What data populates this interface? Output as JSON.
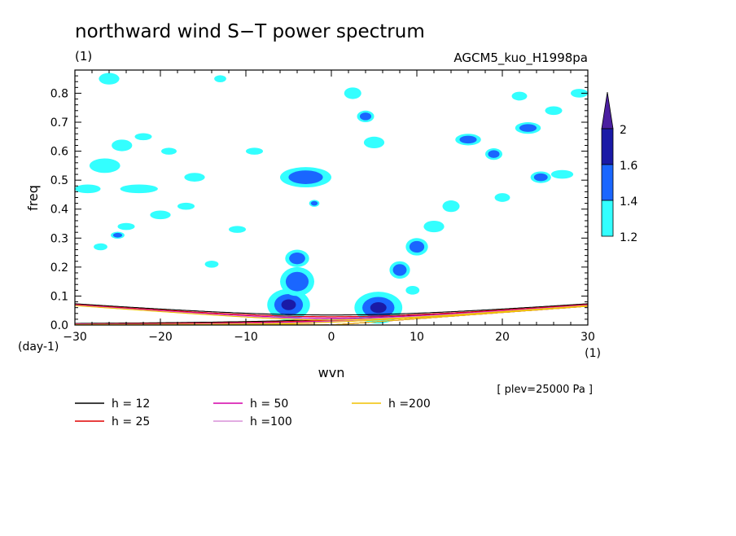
{
  "chart_data": {
    "type": "heatmap",
    "title": "northward wind S−T power spectrum",
    "unit_label": "(1)",
    "run_label": "AGCM5_kuo_H1998pa",
    "xlabel": "wvn",
    "ylabel": "freq",
    "x_unit": "(1)",
    "y_unit": "(day-1)",
    "level_label": "[ plev=25000 Pa ]",
    "xlim": [
      -30,
      30
    ],
    "ylim": [
      0,
      0.88
    ],
    "xticks": [
      -30,
      -20,
      -10,
      0,
      10,
      20,
      30
    ],
    "yticks": [
      0.0,
      0.1,
      0.2,
      0.3,
      0.4,
      0.5,
      0.6,
      0.7,
      0.8
    ],
    "ytick_labels": [
      "0.0",
      "0.1",
      "0.2",
      "0.3",
      "0.4",
      "0.5",
      "0.6",
      "0.7",
      "0.8"
    ],
    "colorbar": {
      "levels": [
        "1.2",
        "1.4",
        "1.6",
        "2"
      ],
      "colors": [
        "#33ffff",
        "#1a66ff",
        "#1a1aa6",
        "#4b1fa0"
      ]
    },
    "dispersion_curves": [
      {
        "label": "h = 12",
        "h": 12,
        "color": "#000000"
      },
      {
        "label": "h = 25",
        "h": 25,
        "color": "#e00000"
      },
      {
        "label": "h = 50",
        "h": 50,
        "color": "#d400a8"
      },
      {
        "label": "h =100",
        "h": 100,
        "color": "#d890d8"
      },
      {
        "label": "h =200",
        "h": 200,
        "color": "#f0c000"
      }
    ],
    "contour_blobs": [
      {
        "x": -5,
        "y": 0.07,
        "rx": 2.5,
        "ry": 0.055,
        "level": 3
      },
      {
        "x": -4,
        "y": 0.15,
        "rx": 2.0,
        "ry": 0.05,
        "level": 2
      },
      {
        "x": -4,
        "y": 0.23,
        "rx": 1.4,
        "ry": 0.03,
        "level": 2
      },
      {
        "x": 5.5,
        "y": 0.06,
        "rx": 2.8,
        "ry": 0.055,
        "level": 3
      },
      {
        "x": 8,
        "y": 0.19,
        "rx": 1.2,
        "ry": 0.03,
        "level": 2
      },
      {
        "x": 10,
        "y": 0.27,
        "rx": 1.3,
        "ry": 0.03,
        "level": 2
      },
      {
        "x": -3,
        "y": 0.51,
        "rx": 3.0,
        "ry": 0.035,
        "level": 2
      },
      {
        "x": 4,
        "y": 0.72,
        "rx": 1.0,
        "ry": 0.02,
        "level": 2
      },
      {
        "x": 23,
        "y": 0.68,
        "rx": 1.5,
        "ry": 0.02,
        "level": 2
      },
      {
        "x": 24.5,
        "y": 0.51,
        "rx": 1.2,
        "ry": 0.02,
        "level": 2
      },
      {
        "x": 16,
        "y": 0.64,
        "rx": 1.5,
        "ry": 0.02,
        "level": 2
      },
      {
        "x": 19,
        "y": 0.59,
        "rx": 1.0,
        "ry": 0.02,
        "level": 2
      },
      {
        "x": 2.5,
        "y": 0.8,
        "rx": 1.0,
        "ry": 0.02,
        "level": 1
      },
      {
        "x": -22.5,
        "y": 0.47,
        "rx": 2.2,
        "ry": 0.015,
        "level": 1
      },
      {
        "x": -26.5,
        "y": 0.55,
        "rx": 1.8,
        "ry": 0.025,
        "level": 1
      },
      {
        "x": -24.5,
        "y": 0.62,
        "rx": 1.2,
        "ry": 0.02,
        "level": 1
      },
      {
        "x": -28.5,
        "y": 0.47,
        "rx": 1.5,
        "ry": 0.015,
        "level": 1
      },
      {
        "x": -26,
        "y": 0.85,
        "rx": 1.2,
        "ry": 0.02,
        "level": 1
      },
      {
        "x": -20,
        "y": 0.38,
        "rx": 1.2,
        "ry": 0.015,
        "level": 1
      },
      {
        "x": -24,
        "y": 0.34,
        "rx": 1.0,
        "ry": 0.012,
        "level": 1
      },
      {
        "x": -16,
        "y": 0.51,
        "rx": 1.2,
        "ry": 0.015,
        "level": 1
      },
      {
        "x": -17,
        "y": 0.41,
        "rx": 1.0,
        "ry": 0.012,
        "level": 1
      },
      {
        "x": -11,
        "y": 0.33,
        "rx": 1.0,
        "ry": 0.012,
        "level": 1
      },
      {
        "x": -14,
        "y": 0.21,
        "rx": 0.8,
        "ry": 0.012,
        "level": 1
      },
      {
        "x": -19,
        "y": 0.6,
        "rx": 0.9,
        "ry": 0.012,
        "level": 1
      },
      {
        "x": -9,
        "y": 0.6,
        "rx": 1.0,
        "ry": 0.012,
        "level": 1
      },
      {
        "x": -25,
        "y": 0.31,
        "rx": 0.8,
        "ry": 0.012,
        "level": 2
      },
      {
        "x": -2,
        "y": 0.42,
        "rx": 0.6,
        "ry": 0.012,
        "level": 2
      },
      {
        "x": 5,
        "y": 0.63,
        "rx": 1.2,
        "ry": 0.02,
        "level": 1
      },
      {
        "x": 12,
        "y": 0.34,
        "rx": 1.2,
        "ry": 0.02,
        "level": 1
      },
      {
        "x": 14,
        "y": 0.41,
        "rx": 1.0,
        "ry": 0.02,
        "level": 1
      },
      {
        "x": 20,
        "y": 0.44,
        "rx": 0.9,
        "ry": 0.015,
        "level": 1
      },
      {
        "x": 27,
        "y": 0.52,
        "rx": 1.3,
        "ry": 0.015,
        "level": 1
      },
      {
        "x": 26,
        "y": 0.74,
        "rx": 1.0,
        "ry": 0.015,
        "level": 1
      },
      {
        "x": 29,
        "y": 0.8,
        "rx": 1.0,
        "ry": 0.015,
        "level": 1
      },
      {
        "x": 22,
        "y": 0.79,
        "rx": 0.9,
        "ry": 0.015,
        "level": 1
      },
      {
        "x": 9.5,
        "y": 0.12,
        "rx": 0.8,
        "ry": 0.015,
        "level": 1
      },
      {
        "x": -22,
        "y": 0.65,
        "rx": 1.0,
        "ry": 0.012,
        "level": 1
      },
      {
        "x": -27,
        "y": 0.27,
        "rx": 0.8,
        "ry": 0.012,
        "level": 1
      },
      {
        "x": -13,
        "y": 0.85,
        "rx": 0.7,
        "ry": 0.012,
        "level": 1
      }
    ]
  }
}
